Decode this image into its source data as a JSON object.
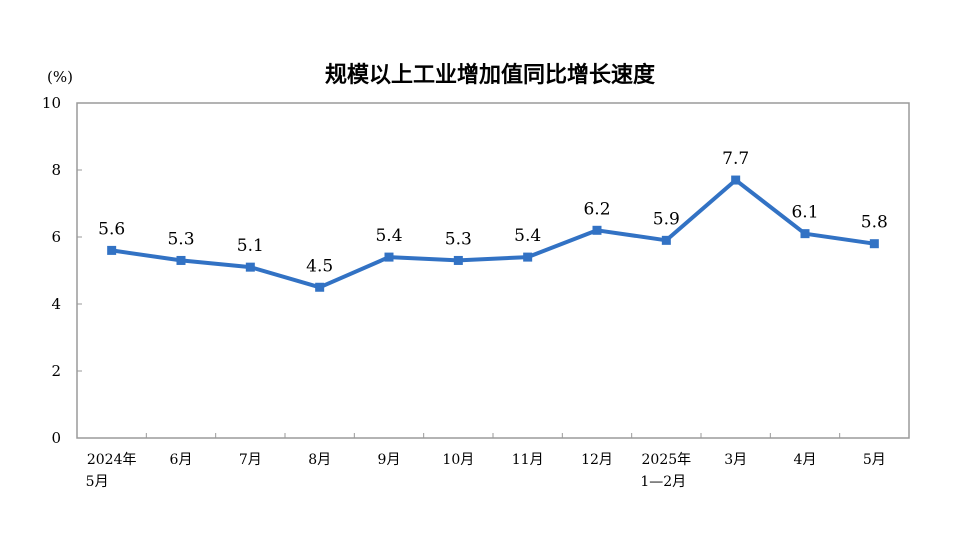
{
  "chart_data": {
    "type": "line",
    "title": "规模以上工业增加值同比增长速度",
    "unit_label": "(%)",
    "ylim": [
      0,
      10
    ],
    "yticks": [
      0,
      2,
      4,
      6,
      8,
      10
    ],
    "categories": [
      [
        "2024年",
        "5月"
      ],
      [
        "6月"
      ],
      [
        "7月"
      ],
      [
        "8月"
      ],
      [
        "9月"
      ],
      [
        "10月"
      ],
      [
        "11月"
      ],
      [
        "12月"
      ],
      [
        "2025年",
        "1—2月"
      ],
      [
        "3月"
      ],
      [
        "4月"
      ],
      [
        "5月"
      ]
    ],
    "series": [
      {
        "values": [
          5.6,
          5.3,
          5.1,
          4.5,
          5.4,
          5.3,
          5.4,
          6.2,
          5.9,
          7.7,
          6.1,
          5.8
        ],
        "labels": [
          "5.6",
          "5.3",
          "5.1",
          "4.5",
          "5.4",
          "5.3",
          "5.4",
          "6.2",
          "5.9",
          "7.7",
          "6.1",
          "5.8"
        ],
        "color": "#3272c4"
      }
    ],
    "grid": false,
    "legend": "none"
  }
}
